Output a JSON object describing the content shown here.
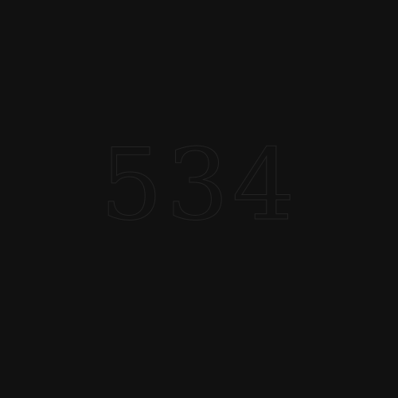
{
  "page": {
    "code": "534",
    "colors": {
      "background": "#111111",
      "text_outline": "#232323"
    }
  }
}
